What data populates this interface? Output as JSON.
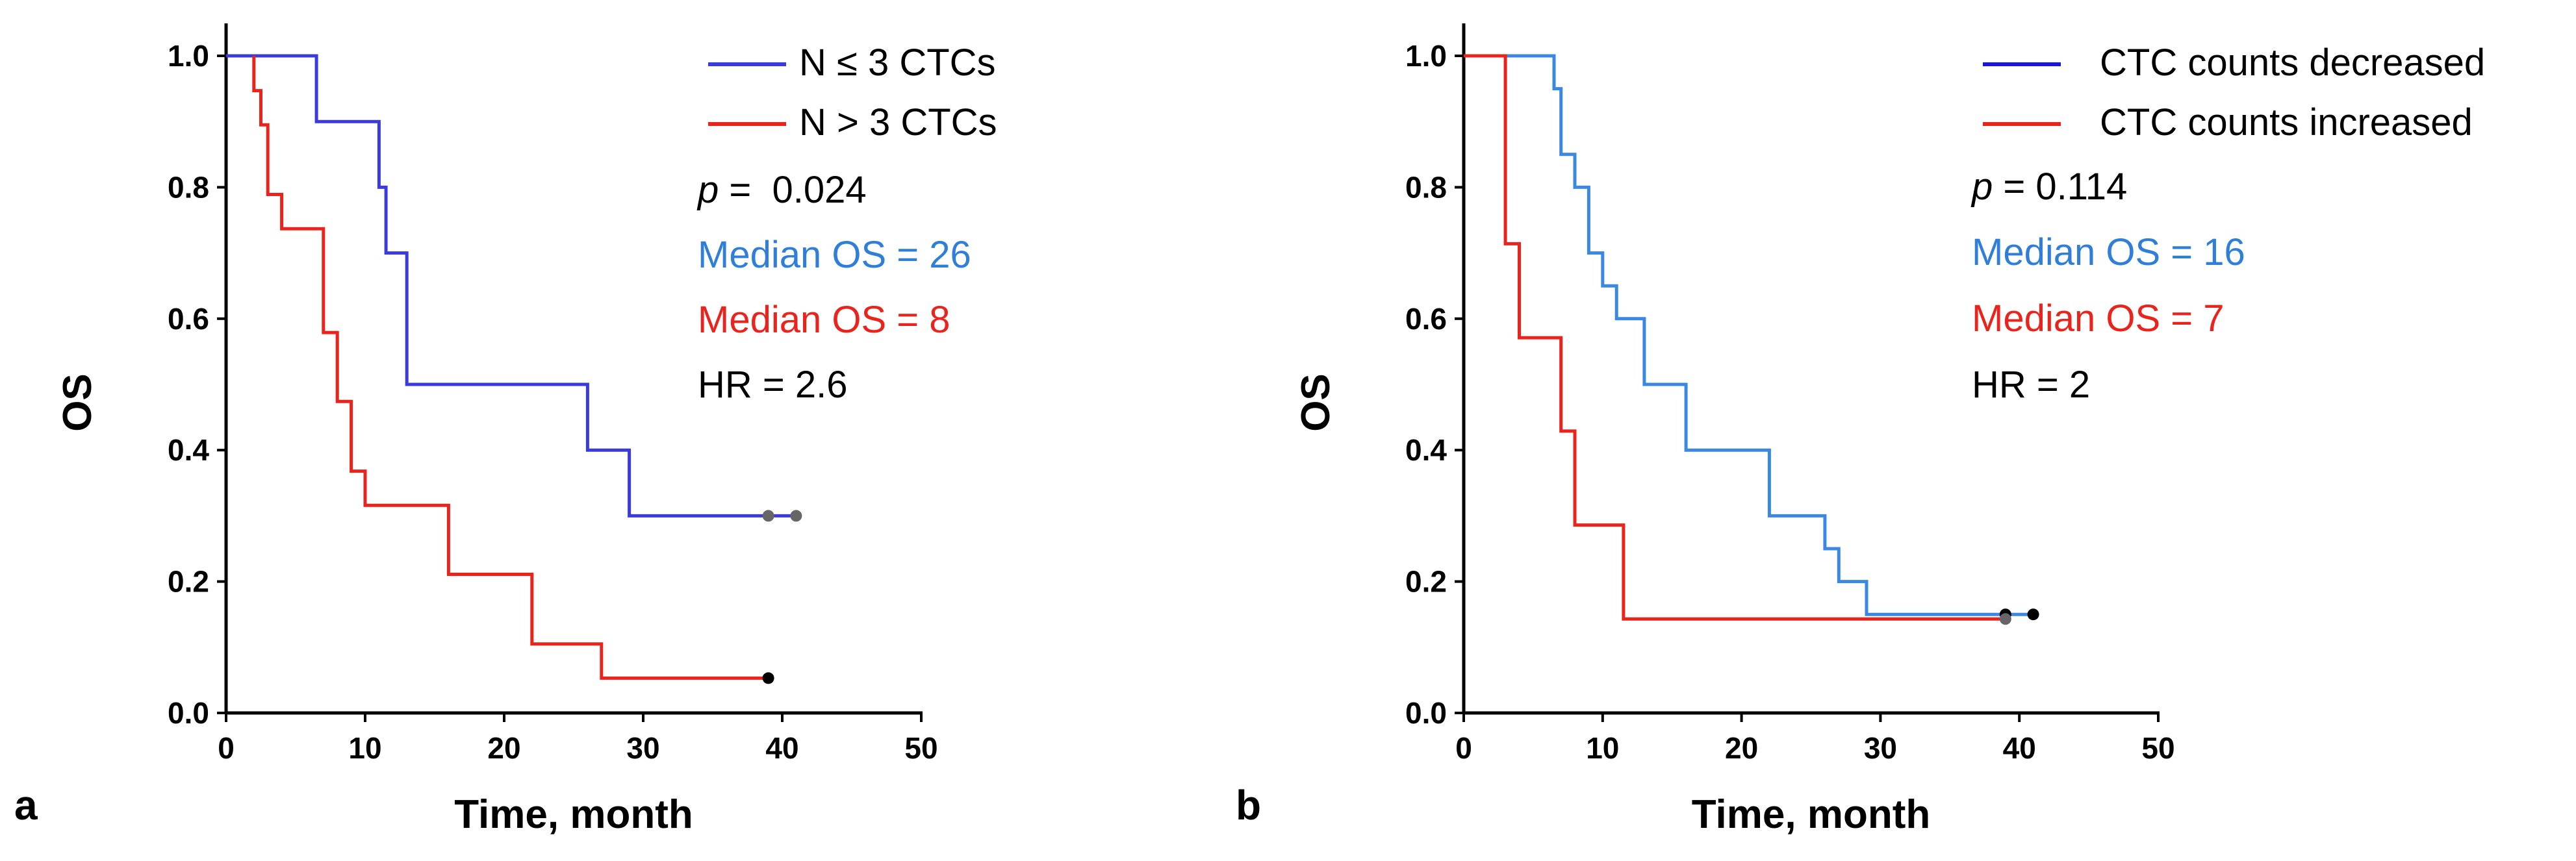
{
  "figure": {
    "panels": [
      {
        "panel_label": "a",
        "p_prefix": "p",
        "p_rest": " =  0.024"
      },
      {
        "panel_label": "b",
        "p_prefix": "p",
        "p_rest": " = 0.114"
      }
    ]
  },
  "chart_data": [
    {
      "type": "line",
      "panel_label": "a",
      "title": "",
      "xlabel": "Time, month",
      "ylabel": "OS",
      "xlim": [
        0,
        50
      ],
      "ylim": [
        0,
        1.0
      ],
      "xticks": [
        "0",
        "10",
        "20",
        "30",
        "40",
        "50"
      ],
      "yticks": [
        "0.0",
        "0.2",
        "0.4",
        "0.6",
        "0.8",
        "1.0"
      ],
      "series": [
        {
          "name": "N ≤ 3 CTCs",
          "color": "#3b3bdc",
          "step": true,
          "points": [
            [
              0,
              1.0
            ],
            [
              6.5,
              1.0
            ],
            [
              6.5,
              0.9
            ],
            [
              11,
              0.9
            ],
            [
              11,
              0.8
            ],
            [
              11.5,
              0.8
            ],
            [
              11.5,
              0.7
            ],
            [
              13,
              0.7
            ],
            [
              13,
              0.5
            ],
            [
              26,
              0.5
            ],
            [
              26,
              0.4
            ],
            [
              29,
              0.4
            ],
            [
              29,
              0.3
            ],
            [
              41,
              0.3
            ]
          ],
          "censored": [
            [
              39,
              0.3
            ],
            [
              41,
              0.3
            ]
          ],
          "censor_color": "#666666"
        },
        {
          "name": "N > 3 CTCs",
          "color": "#e8241c",
          "step": true,
          "points": [
            [
              2,
              1.0
            ],
            [
              2,
              0.947
            ],
            [
              2.5,
              0.947
            ],
            [
              2.5,
              0.895
            ],
            [
              3,
              0.895
            ],
            [
              3,
              0.789
            ],
            [
              4,
              0.789
            ],
            [
              4,
              0.737
            ],
            [
              7,
              0.737
            ],
            [
              7,
              0.579
            ],
            [
              8,
              0.579
            ],
            [
              8,
              0.474
            ],
            [
              9,
              0.474
            ],
            [
              9,
              0.368
            ],
            [
              10,
              0.368
            ],
            [
              10,
              0.316
            ],
            [
              16,
              0.316
            ],
            [
              16,
              0.211
            ],
            [
              22,
              0.211
            ],
            [
              22,
              0.105
            ],
            [
              27,
              0.105
            ],
            [
              27,
              0.053
            ],
            [
              39,
              0.053
            ]
          ],
          "censored": [
            [
              39,
              0.053
            ]
          ],
          "censor_color": "#000000"
        }
      ],
      "annotations": [
        {
          "text": "Median OS = 26",
          "color": "#2f7fd8"
        },
        {
          "text": "Median OS = 8",
          "color": "#e8241c"
        },
        {
          "text": "HR = 2.6",
          "color": "#000000"
        }
      ]
    },
    {
      "type": "line",
      "panel_label": "b",
      "title": "",
      "xlabel": "Time, month",
      "ylabel": "OS",
      "xlim": [
        0,
        50
      ],
      "ylim": [
        0,
        1.0
      ],
      "xticks": [
        "0",
        "10",
        "20",
        "30",
        "40",
        "50"
      ],
      "yticks": [
        "0.0",
        "0.2",
        "0.4",
        "0.6",
        "0.8",
        "1.0"
      ],
      "series": [
        {
          "name": "CTC counts decreased",
          "legend_color": "#1a1acc",
          "color": "#3a88e0",
          "step": true,
          "points": [
            [
              0,
              1.0
            ],
            [
              6.5,
              1.0
            ],
            [
              6.5,
              0.95
            ],
            [
              7,
              0.95
            ],
            [
              7,
              0.85
            ],
            [
              8,
              0.85
            ],
            [
              8,
              0.8
            ],
            [
              9,
              0.8
            ],
            [
              9,
              0.7
            ],
            [
              10,
              0.7
            ],
            [
              10,
              0.65
            ],
            [
              11,
              0.65
            ],
            [
              11,
              0.6
            ],
            [
              13,
              0.6
            ],
            [
              13,
              0.5
            ],
            [
              16,
              0.5
            ],
            [
              16,
              0.4
            ],
            [
              22,
              0.4
            ],
            [
              22,
              0.3
            ],
            [
              26,
              0.3
            ],
            [
              26,
              0.25
            ],
            [
              27,
              0.25
            ],
            [
              27,
              0.2
            ],
            [
              29,
              0.2
            ],
            [
              29,
              0.15
            ],
            [
              41,
              0.15
            ]
          ],
          "censored": [
            [
              39,
              0.15
            ],
            [
              41,
              0.15
            ]
          ],
          "censor_color": "#000000"
        },
        {
          "name": "CTC counts increased",
          "color": "#e8241c",
          "step": true,
          "points": [
            [
              0,
              1.0
            ],
            [
              3,
              1.0
            ],
            [
              3,
              0.714
            ],
            [
              4,
              0.714
            ],
            [
              4,
              0.571
            ],
            [
              7,
              0.571
            ],
            [
              7,
              0.429
            ],
            [
              8,
              0.429
            ],
            [
              8,
              0.286
            ],
            [
              11.5,
              0.286
            ],
            [
              11.5,
              0.143
            ],
            [
              39,
              0.143
            ]
          ],
          "censored": [
            [
              39,
              0.143
            ]
          ],
          "censor_color": "#666666"
        }
      ],
      "annotations": [
        {
          "text": "Median OS = 16",
          "color": "#2f7fd8"
        },
        {
          "text": "Median OS = 7",
          "color": "#e8241c"
        },
        {
          "text": "HR = 2",
          "color": "#000000"
        }
      ]
    }
  ]
}
